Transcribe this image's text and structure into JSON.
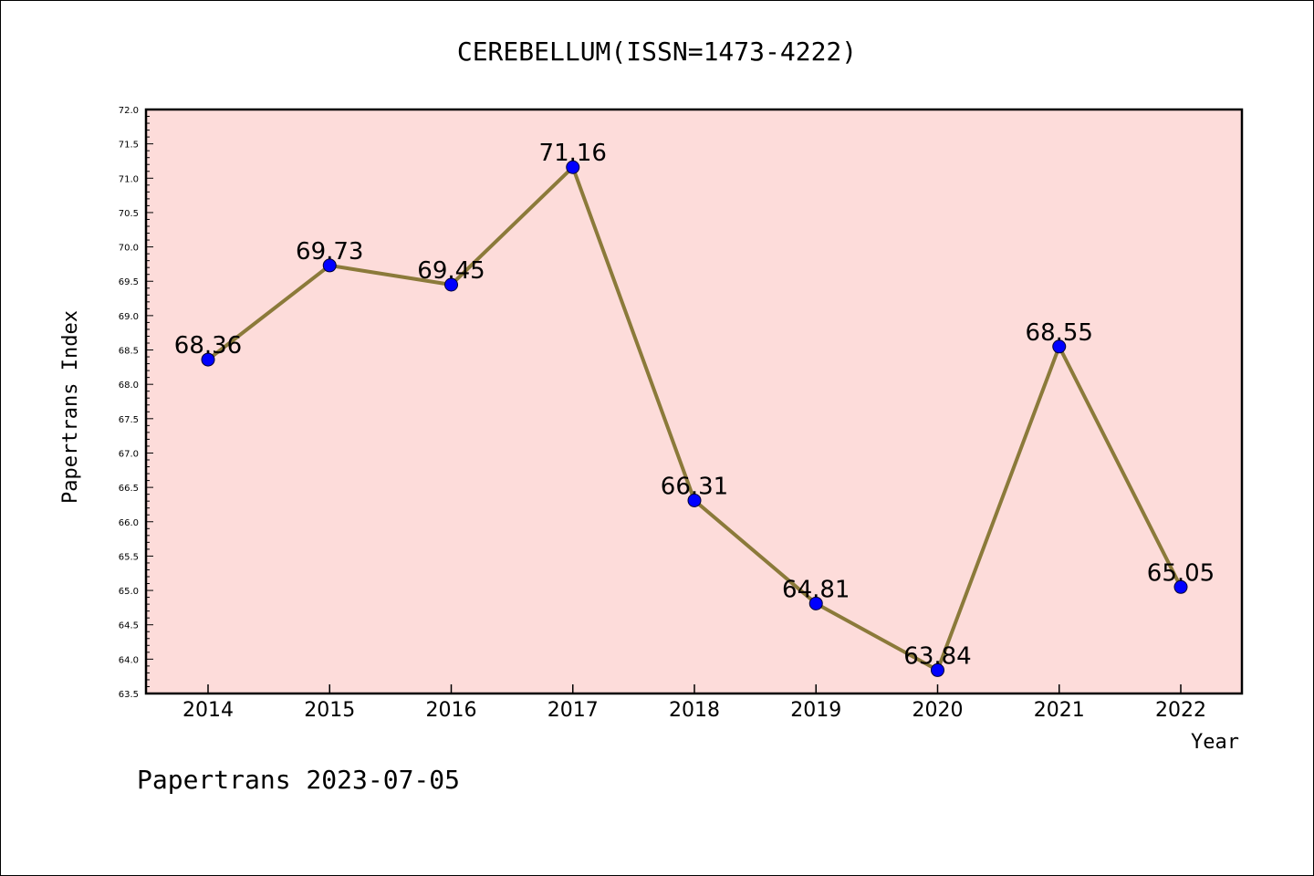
{
  "chart_data": {
    "type": "line",
    "title": "CEREBELLUM(ISSN=1473-4222)",
    "xlabel": "Year",
    "ylabel": "Papertrans Index",
    "categories": [
      "2014",
      "2015",
      "2016",
      "2017",
      "2018",
      "2019",
      "2020",
      "2021",
      "2022"
    ],
    "values": [
      68.36,
      69.73,
      69.45,
      71.16,
      66.31,
      64.81,
      63.84,
      68.55,
      65.05
    ],
    "data_labels": [
      "68.36",
      "69.73",
      "69.45",
      "71.16",
      "66.31",
      "64.81",
      "63.84",
      "68.55",
      "65.05"
    ],
    "ylim": [
      63.5,
      72.0
    ],
    "yticks": [
      "63.5",
      "64.0",
      "64.5",
      "65.0",
      "65.5",
      "66.0",
      "66.5",
      "67.0",
      "67.5",
      "68.0",
      "68.5",
      "69.0",
      "69.5",
      "70.0",
      "70.5",
      "71.0",
      "71.5",
      "72.0"
    ],
    "grid": false,
    "colors": {
      "plot_background": "#fddcda",
      "line": "#8b7a3a",
      "marker": "#0000ff"
    }
  },
  "footer": "Papertrans 2023-07-05"
}
